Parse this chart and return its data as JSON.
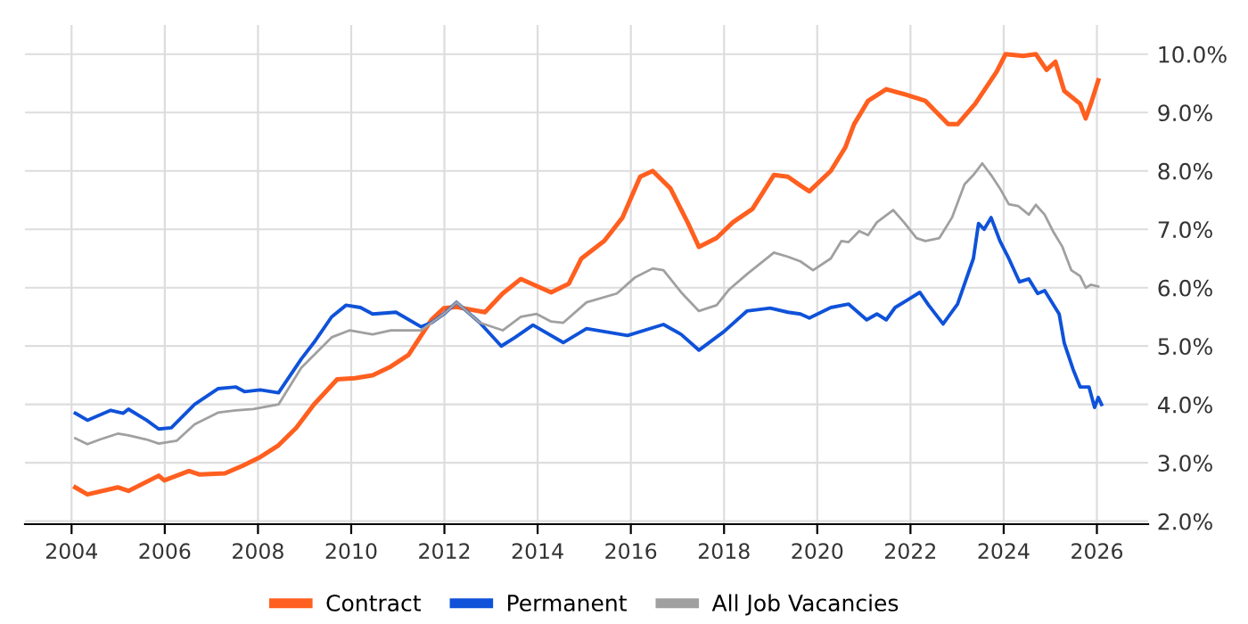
{
  "chart_data": {
    "type": "line",
    "xlim": [
      2003,
      2027.1
    ],
    "ylim": [
      1.95,
      10.5
    ],
    "xticks": [
      2004,
      2006,
      2008,
      2010,
      2012,
      2014,
      2016,
      2018,
      2020,
      2022,
      2024,
      2026
    ],
    "yticks": [
      {
        "value": 2,
        "label": "2.0%"
      },
      {
        "value": 3,
        "label": "3.0%"
      },
      {
        "value": 4,
        "label": "4.0%"
      },
      {
        "value": 5,
        "label": "5.0%"
      },
      {
        "value": 6,
        "label": "6.0%"
      },
      {
        "value": 7,
        "label": "7.0%"
      },
      {
        "value": 8,
        "label": "8.0%"
      },
      {
        "value": 9,
        "label": "9.0%"
      },
      {
        "value": 10,
        "label": "10.0%"
      }
    ],
    "grid": true,
    "legend": "bottom",
    "marker": "none",
    "line_style": "solid",
    "series": [
      {
        "name": "Contract",
        "color": "#ff5f1f",
        "x": [
          2004.08,
          2004.34,
          2004.99,
          2005.22,
          2005.87,
          2005.99,
          2006.52,
          2006.75,
          2007.29,
          2007.67,
          2008.05,
          2008.44,
          2008.82,
          2009.2,
          2009.7,
          2010.08,
          2010.46,
          2010.85,
          2011.23,
          2011.72,
          2011.99,
          2012.26,
          2012.87,
          2013.25,
          2013.64,
          2014.29,
          2014.67,
          2014.94,
          2015.43,
          2015.82,
          2016.2,
          2016.47,
          2016.85,
          2017.23,
          2017.46,
          2017.84,
          2018.19,
          2018.61,
          2019.07,
          2019.37,
          2019.64,
          2019.83,
          2020.29,
          2020.6,
          2020.79,
          2021.09,
          2021.48,
          2021.93,
          2022.32,
          2022.81,
          2023.01,
          2023.39,
          2023.85,
          2024.04,
          2024.42,
          2024.69,
          2024.92,
          2025.11,
          2025.3,
          2025.64,
          2025.76,
          2025.87,
          2026.03
        ],
        "values": [
          2.58,
          2.46,
          2.58,
          2.52,
          2.78,
          2.7,
          2.86,
          2.8,
          2.82,
          2.95,
          3.1,
          3.3,
          3.6,
          4.0,
          4.43,
          4.45,
          4.5,
          4.65,
          4.85,
          5.45,
          5.65,
          5.67,
          5.58,
          5.9,
          6.15,
          5.92,
          6.07,
          6.5,
          6.8,
          7.2,
          7.9,
          8.0,
          7.7,
          7.1,
          6.7,
          6.85,
          7.12,
          7.35,
          7.93,
          7.9,
          7.75,
          7.65,
          8.0,
          8.4,
          8.8,
          9.2,
          9.4,
          9.3,
          9.2,
          8.8,
          8.8,
          9.15,
          9.7,
          10.0,
          9.97,
          10.0,
          9.73,
          9.87,
          9.37,
          9.15,
          8.9,
          9.15,
          9.55
        ]
      },
      {
        "name": "Permanent",
        "color": "#0f52d9",
        "x": [
          2004.08,
          2004.34,
          2004.84,
          2005.11,
          2005.22,
          2005.61,
          2005.87,
          2006.14,
          2006.64,
          2007.14,
          2007.52,
          2007.71,
          2008.05,
          2008.44,
          2008.93,
          2009.2,
          2009.58,
          2009.89,
          2010.2,
          2010.46,
          2010.96,
          2011.5,
          2011.72,
          2011.99,
          2012.26,
          2012.76,
          2013.22,
          2013.52,
          2013.9,
          2014.55,
          2015.05,
          2015.93,
          2016.7,
          2017.08,
          2017.46,
          2018.0,
          2018.49,
          2018.99,
          2019.37,
          2019.64,
          2019.83,
          2020.29,
          2020.67,
          2021.06,
          2021.28,
          2021.48,
          2021.67,
          2022.2,
          2022.39,
          2022.7,
          2023.01,
          2023.35,
          2023.46,
          2023.58,
          2023.73,
          2023.92,
          2024.11,
          2024.34,
          2024.54,
          2024.73,
          2024.88,
          2025.19,
          2025.3,
          2025.49,
          2025.64,
          2025.83,
          2025.95,
          2026.03,
          2026.1
        ],
        "values": [
          3.85,
          3.73,
          3.9,
          3.85,
          3.92,
          3.73,
          3.58,
          3.6,
          4.0,
          4.27,
          4.3,
          4.22,
          4.25,
          4.2,
          4.78,
          5.06,
          5.5,
          5.7,
          5.66,
          5.55,
          5.58,
          5.33,
          5.4,
          5.55,
          5.75,
          5.4,
          5.0,
          5.15,
          5.36,
          5.06,
          5.3,
          5.18,
          5.37,
          5.2,
          4.93,
          5.25,
          5.6,
          5.65,
          5.58,
          5.55,
          5.48,
          5.66,
          5.72,
          5.45,
          5.55,
          5.45,
          5.66,
          5.92,
          5.7,
          5.38,
          5.72,
          6.5,
          7.1,
          7.0,
          7.2,
          6.8,
          6.5,
          6.1,
          6.15,
          5.9,
          5.95,
          5.55,
          5.05,
          4.6,
          4.3,
          4.3,
          3.95,
          4.12,
          4.0
        ]
      },
      {
        "name": "All Job Vacancies",
        "color": "#a0a0a0",
        "x": [
          2004.08,
          2004.34,
          2004.61,
          2004.99,
          2005.22,
          2005.61,
          2005.87,
          2006.26,
          2006.64,
          2007.14,
          2007.52,
          2007.9,
          2008.44,
          2008.93,
          2009.58,
          2009.97,
          2010.46,
          2010.85,
          2011.5,
          2011.72,
          2011.99,
          2012.26,
          2012.76,
          2013.25,
          2013.64,
          2013.98,
          2014.29,
          2014.55,
          2015.05,
          2015.7,
          2016.08,
          2016.47,
          2016.7,
          2017.08,
          2017.46,
          2017.84,
          2018.11,
          2018.49,
          2019.07,
          2019.37,
          2019.64,
          2019.91,
          2020.29,
          2020.52,
          2020.67,
          2020.9,
          2021.09,
          2021.28,
          2021.63,
          2021.86,
          2022.13,
          2022.32,
          2022.62,
          2022.89,
          2023.16,
          2023.35,
          2023.54,
          2023.73,
          2023.92,
          2024.11,
          2024.31,
          2024.54,
          2024.69,
          2024.88,
          2025.07,
          2025.26,
          2025.45,
          2025.64,
          2025.76,
          2025.87,
          2026.03
        ],
        "values": [
          3.42,
          3.32,
          3.4,
          3.5,
          3.47,
          3.4,
          3.33,
          3.38,
          3.66,
          3.86,
          3.9,
          3.92,
          4.0,
          4.63,
          5.15,
          5.27,
          5.2,
          5.27,
          5.27,
          5.4,
          5.55,
          5.75,
          5.4,
          5.27,
          5.5,
          5.55,
          5.42,
          5.4,
          5.75,
          5.9,
          6.17,
          6.33,
          6.3,
          5.92,
          5.6,
          5.7,
          5.97,
          6.23,
          6.6,
          6.53,
          6.45,
          6.3,
          6.5,
          6.8,
          6.78,
          6.97,
          6.9,
          7.12,
          7.33,
          7.12,
          6.85,
          6.8,
          6.85,
          7.2,
          7.77,
          7.93,
          8.13,
          7.93,
          7.7,
          7.43,
          7.4,
          7.25,
          7.42,
          7.25,
          6.95,
          6.7,
          6.3,
          6.2,
          6.0,
          6.05,
          6.02
        ]
      }
    ]
  }
}
